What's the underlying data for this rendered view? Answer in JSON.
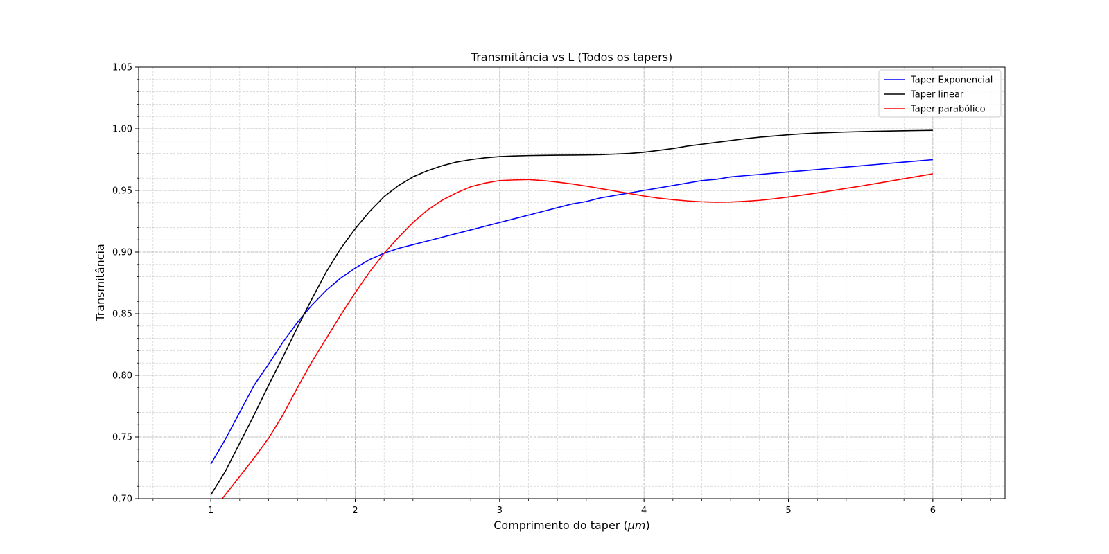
{
  "chart_data": {
    "type": "line",
    "title": "Transmitância vs L (Todos os tapers)",
    "xlabel_prefix": "Comprimento do taper (",
    "xlabel_unit": "μm",
    "xlabel_suffix": ")",
    "ylabel": "Transmitância",
    "xlim": [
      0.5,
      6.5
    ],
    "ylim": [
      0.7,
      1.05
    ],
    "xticks": [
      1,
      2,
      3,
      4,
      5,
      6
    ],
    "xtick_labels": [
      "1",
      "2",
      "3",
      "4",
      "5",
      "6"
    ],
    "yticks": [
      0.7,
      0.75,
      0.8,
      0.85,
      0.9,
      0.95,
      1.0,
      1.05
    ],
    "ytick_labels": [
      "0.70",
      "0.75",
      "0.80",
      "0.85",
      "0.90",
      "0.95",
      "1.00",
      "1.05"
    ],
    "x_minor_step": 0.2,
    "y_minor_step": 0.01,
    "grid": true,
    "legend_position": "top-right",
    "x": [
      1.0,
      1.1,
      1.2,
      1.3,
      1.4,
      1.5,
      1.6,
      1.7,
      1.8,
      1.9,
      2.0,
      2.1,
      2.2,
      2.3,
      2.4,
      2.5,
      2.6,
      2.7,
      2.8,
      2.9,
      3.0,
      3.1,
      3.2,
      3.3,
      3.4,
      3.5,
      3.6,
      3.7,
      3.8,
      3.9,
      4.0,
      4.1,
      4.2,
      4.3,
      4.4,
      4.5,
      4.6,
      4.7,
      4.8,
      4.9,
      5.0,
      5.1,
      5.2,
      5.3,
      5.4,
      5.5,
      5.6,
      5.7,
      5.8,
      5.9,
      6.0
    ],
    "series": [
      {
        "name": "Taper Exponencial",
        "color": "#0000ff",
        "values": [
          0.728,
          0.748,
          0.77,
          0.792,
          0.809,
          0.827,
          0.843,
          0.857,
          0.869,
          0.879,
          0.887,
          0.894,
          0.899,
          0.903,
          0.906,
          0.909,
          0.912,
          0.915,
          0.918,
          0.921,
          0.924,
          0.927,
          0.93,
          0.933,
          0.936,
          0.939,
          0.941,
          0.944,
          0.946,
          0.948,
          0.95,
          0.952,
          0.954,
          0.956,
          0.958,
          0.959,
          0.961,
          0.962,
          0.963,
          0.964,
          0.965,
          0.966,
          0.967,
          0.968,
          0.969,
          0.97,
          0.971,
          0.972,
          0.973,
          0.974,
          0.975
        ]
      },
      {
        "name": "Taper linear",
        "color": "#000000",
        "values": [
          0.703,
          0.722,
          0.745,
          0.768,
          0.792,
          0.815,
          0.839,
          0.862,
          0.884,
          0.903,
          0.919,
          0.933,
          0.945,
          0.954,
          0.961,
          0.966,
          0.97,
          0.973,
          0.975,
          0.9765,
          0.9775,
          0.978,
          0.9783,
          0.9785,
          0.9786,
          0.9787,
          0.9788,
          0.979,
          0.9795,
          0.98,
          0.981,
          0.9825,
          0.984,
          0.986,
          0.9875,
          0.989,
          0.9905,
          0.992,
          0.9932,
          0.9942,
          0.9952,
          0.996,
          0.9966,
          0.997,
          0.9974,
          0.9977,
          0.998,
          0.9982,
          0.9984,
          0.9986,
          0.9988
        ]
      },
      {
        "name": "Taper parabólico",
        "color": "#ff0000",
        "values": [
          0.689,
          0.703,
          0.718,
          0.733,
          0.749,
          0.768,
          0.79,
          0.811,
          0.83,
          0.849,
          0.867,
          0.884,
          0.899,
          0.912,
          0.924,
          0.934,
          0.942,
          0.948,
          0.953,
          0.956,
          0.958,
          0.9585,
          0.9588,
          0.958,
          0.9568,
          0.9553,
          0.9535,
          0.9515,
          0.9495,
          0.9475,
          0.9455,
          0.9438,
          0.9425,
          0.9415,
          0.9408,
          0.9405,
          0.9406,
          0.9412,
          0.942,
          0.9432,
          0.9447,
          0.9463,
          0.948,
          0.9498,
          0.9517,
          0.9535,
          0.9555,
          0.9575,
          0.9595,
          0.9615,
          0.9635
        ]
      }
    ]
  }
}
